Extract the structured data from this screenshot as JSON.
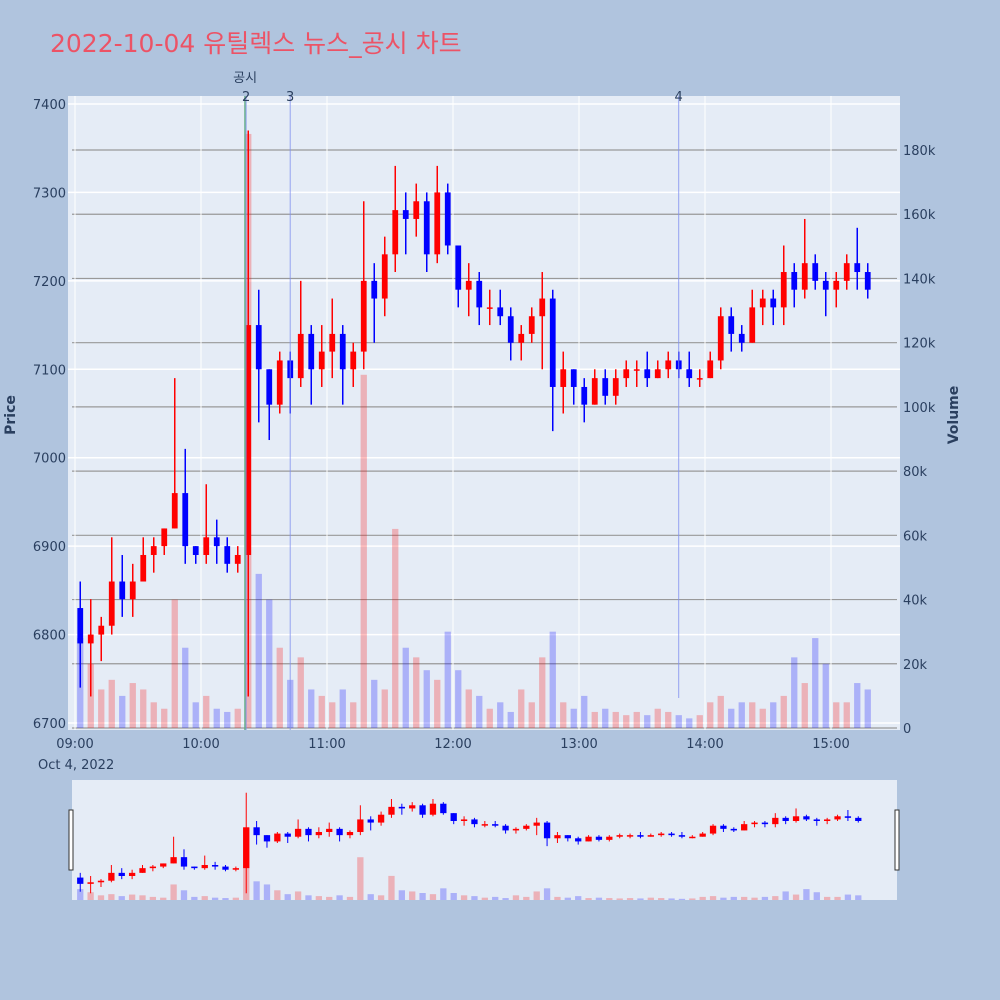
{
  "title": "2022-10-04 유틸렉스 뉴스_공시 차트",
  "chart_data": {
    "type": "candlestick",
    "title": "2022-10-04 유틸렉스 뉴스_공시 차트",
    "ylabel": "Price",
    "y2label": "Volume",
    "date_label": "Oct 4, 2022",
    "x_ticks": [
      "09:00",
      "10:00",
      "11:00",
      "12:00",
      "13:00",
      "14:00",
      "15:00"
    ],
    "y_ticks": [
      6700,
      6800,
      6900,
      7000,
      7100,
      7200,
      7300,
      7400
    ],
    "y2_ticks": [
      "0",
      "20k",
      "40k",
      "60k",
      "80k",
      "100k",
      "120k",
      "140k",
      "160k",
      "180k"
    ],
    "ylim": [
      6700,
      7400
    ],
    "y2lim": [
      0,
      180000
    ],
    "interval_minutes": 5,
    "start_time": "09:00",
    "increasing_color": "#ff0000",
    "decreasing_color": "#0000ff",
    "candles": [
      [
        6830,
        6860,
        6740,
        6790,
        28000
      ],
      [
        6790,
        6840,
        6730,
        6800,
        20000
      ],
      [
        6800,
        6820,
        6770,
        6810,
        12000
      ],
      [
        6810,
        6910,
        6800,
        6860,
        15000
      ],
      [
        6860,
        6890,
        6820,
        6840,
        10000
      ],
      [
        6840,
        6880,
        6820,
        6860,
        14000
      ],
      [
        6860,
        6910,
        6860,
        6890,
        12000
      ],
      [
        6890,
        6910,
        6870,
        6900,
        8000
      ],
      [
        6900,
        6920,
        6890,
        6920,
        6000
      ],
      [
        6920,
        7090,
        6920,
        6960,
        40000
      ],
      [
        6960,
        7010,
        6880,
        6900,
        25000
      ],
      [
        6900,
        6900,
        6880,
        6890,
        8000
      ],
      [
        6890,
        6970,
        6880,
        6910,
        10000
      ],
      [
        6910,
        6930,
        6880,
        6900,
        6000
      ],
      [
        6900,
        6910,
        6870,
        6880,
        5000
      ],
      [
        6880,
        6900,
        6870,
        6890,
        6000
      ],
      [
        6890,
        7370,
        6730,
        7150,
        185000
      ],
      [
        7150,
        7190,
        7040,
        7100,
        48000
      ],
      [
        7100,
        7100,
        7020,
        7060,
        40000
      ],
      [
        7060,
        7120,
        7050,
        7110,
        25000
      ],
      [
        7110,
        7120,
        7050,
        7090,
        15000
      ],
      [
        7090,
        7200,
        7080,
        7140,
        22000
      ],
      [
        7140,
        7150,
        7060,
        7100,
        12000
      ],
      [
        7100,
        7150,
        7080,
        7120,
        10000
      ],
      [
        7120,
        7180,
        7090,
        7140,
        8000
      ],
      [
        7140,
        7150,
        7060,
        7100,
        12000
      ],
      [
        7100,
        7130,
        7080,
        7120,
        8000
      ],
      [
        7120,
        7290,
        7100,
        7200,
        110000
      ],
      [
        7200,
        7220,
        7130,
        7180,
        15000
      ],
      [
        7180,
        7250,
        7160,
        7230,
        12000
      ],
      [
        7230,
        7330,
        7210,
        7280,
        62000
      ],
      [
        7280,
        7300,
        7230,
        7270,
        25000
      ],
      [
        7270,
        7310,
        7250,
        7290,
        22000
      ],
      [
        7290,
        7300,
        7210,
        7230,
        18000
      ],
      [
        7230,
        7330,
        7220,
        7300,
        15000
      ],
      [
        7300,
        7310,
        7230,
        7240,
        30000
      ],
      [
        7240,
        7240,
        7170,
        7190,
        18000
      ],
      [
        7190,
        7220,
        7160,
        7200,
        12000
      ],
      [
        7200,
        7210,
        7150,
        7170,
        10000
      ],
      [
        7170,
        7190,
        7150,
        7170,
        6000
      ],
      [
        7170,
        7190,
        7150,
        7160,
        8000
      ],
      [
        7160,
        7170,
        7110,
        7130,
        5000
      ],
      [
        7130,
        7150,
        7110,
        7140,
        12000
      ],
      [
        7140,
        7170,
        7130,
        7160,
        8000
      ],
      [
        7160,
        7210,
        7100,
        7180,
        22000
      ],
      [
        7180,
        7190,
        7030,
        7080,
        30000
      ],
      [
        7080,
        7120,
        7050,
        7100,
        8000
      ],
      [
        7100,
        7100,
        7060,
        7080,
        6000
      ],
      [
        7080,
        7090,
        7040,
        7060,
        10000
      ],
      [
        7060,
        7100,
        7060,
        7090,
        5000
      ],
      [
        7090,
        7100,
        7060,
        7070,
        6000
      ],
      [
        7070,
        7100,
        7060,
        7090,
        5000
      ],
      [
        7090,
        7110,
        7080,
        7100,
        4000
      ],
      [
        7100,
        7110,
        7080,
        7100,
        5000
      ],
      [
        7100,
        7120,
        7080,
        7090,
        4000
      ],
      [
        7090,
        7110,
        7090,
        7100,
        6000
      ],
      [
        7100,
        7120,
        7090,
        7110,
        5000
      ],
      [
        7110,
        7120,
        7090,
        7100,
        4000
      ],
      [
        7100,
        7120,
        7080,
        7090,
        3000
      ],
      [
        7090,
        7100,
        7080,
        7090,
        4000
      ],
      [
        7090,
        7120,
        7090,
        7110,
        8000
      ],
      [
        7110,
        7170,
        7100,
        7160,
        10000
      ],
      [
        7160,
        7170,
        7120,
        7140,
        6000
      ],
      [
        7140,
        7150,
        7120,
        7130,
        8000
      ],
      [
        7130,
        7190,
        7130,
        7170,
        8000
      ],
      [
        7170,
        7190,
        7150,
        7180,
        6000
      ],
      [
        7180,
        7190,
        7150,
        7170,
        8000
      ],
      [
        7170,
        7240,
        7150,
        7210,
        10000
      ],
      [
        7210,
        7220,
        7170,
        7190,
        22000
      ],
      [
        7190,
        7270,
        7180,
        7220,
        14000
      ],
      [
        7220,
        7230,
        7190,
        7200,
        28000
      ],
      [
        7200,
        7210,
        7160,
        7190,
        20000
      ],
      [
        7190,
        7210,
        7170,
        7200,
        8000
      ],
      [
        7200,
        7230,
        7190,
        7220,
        8000
      ],
      [
        7220,
        7260,
        7190,
        7210,
        14000
      ],
      [
        7210,
        7220,
        7180,
        7190,
        12000
      ]
    ],
    "annotations": [
      {
        "label": "공시",
        "time": "10:21",
        "color": "#5fae7f"
      },
      {
        "label": "2",
        "time": "10:21",
        "color": "#8090f0"
      },
      {
        "label": "3",
        "time": "10:42",
        "color": "#8090f0"
      },
      {
        "label": "4",
        "time": "13:47",
        "color": "#8090f0"
      }
    ],
    "range_slider": true
  }
}
